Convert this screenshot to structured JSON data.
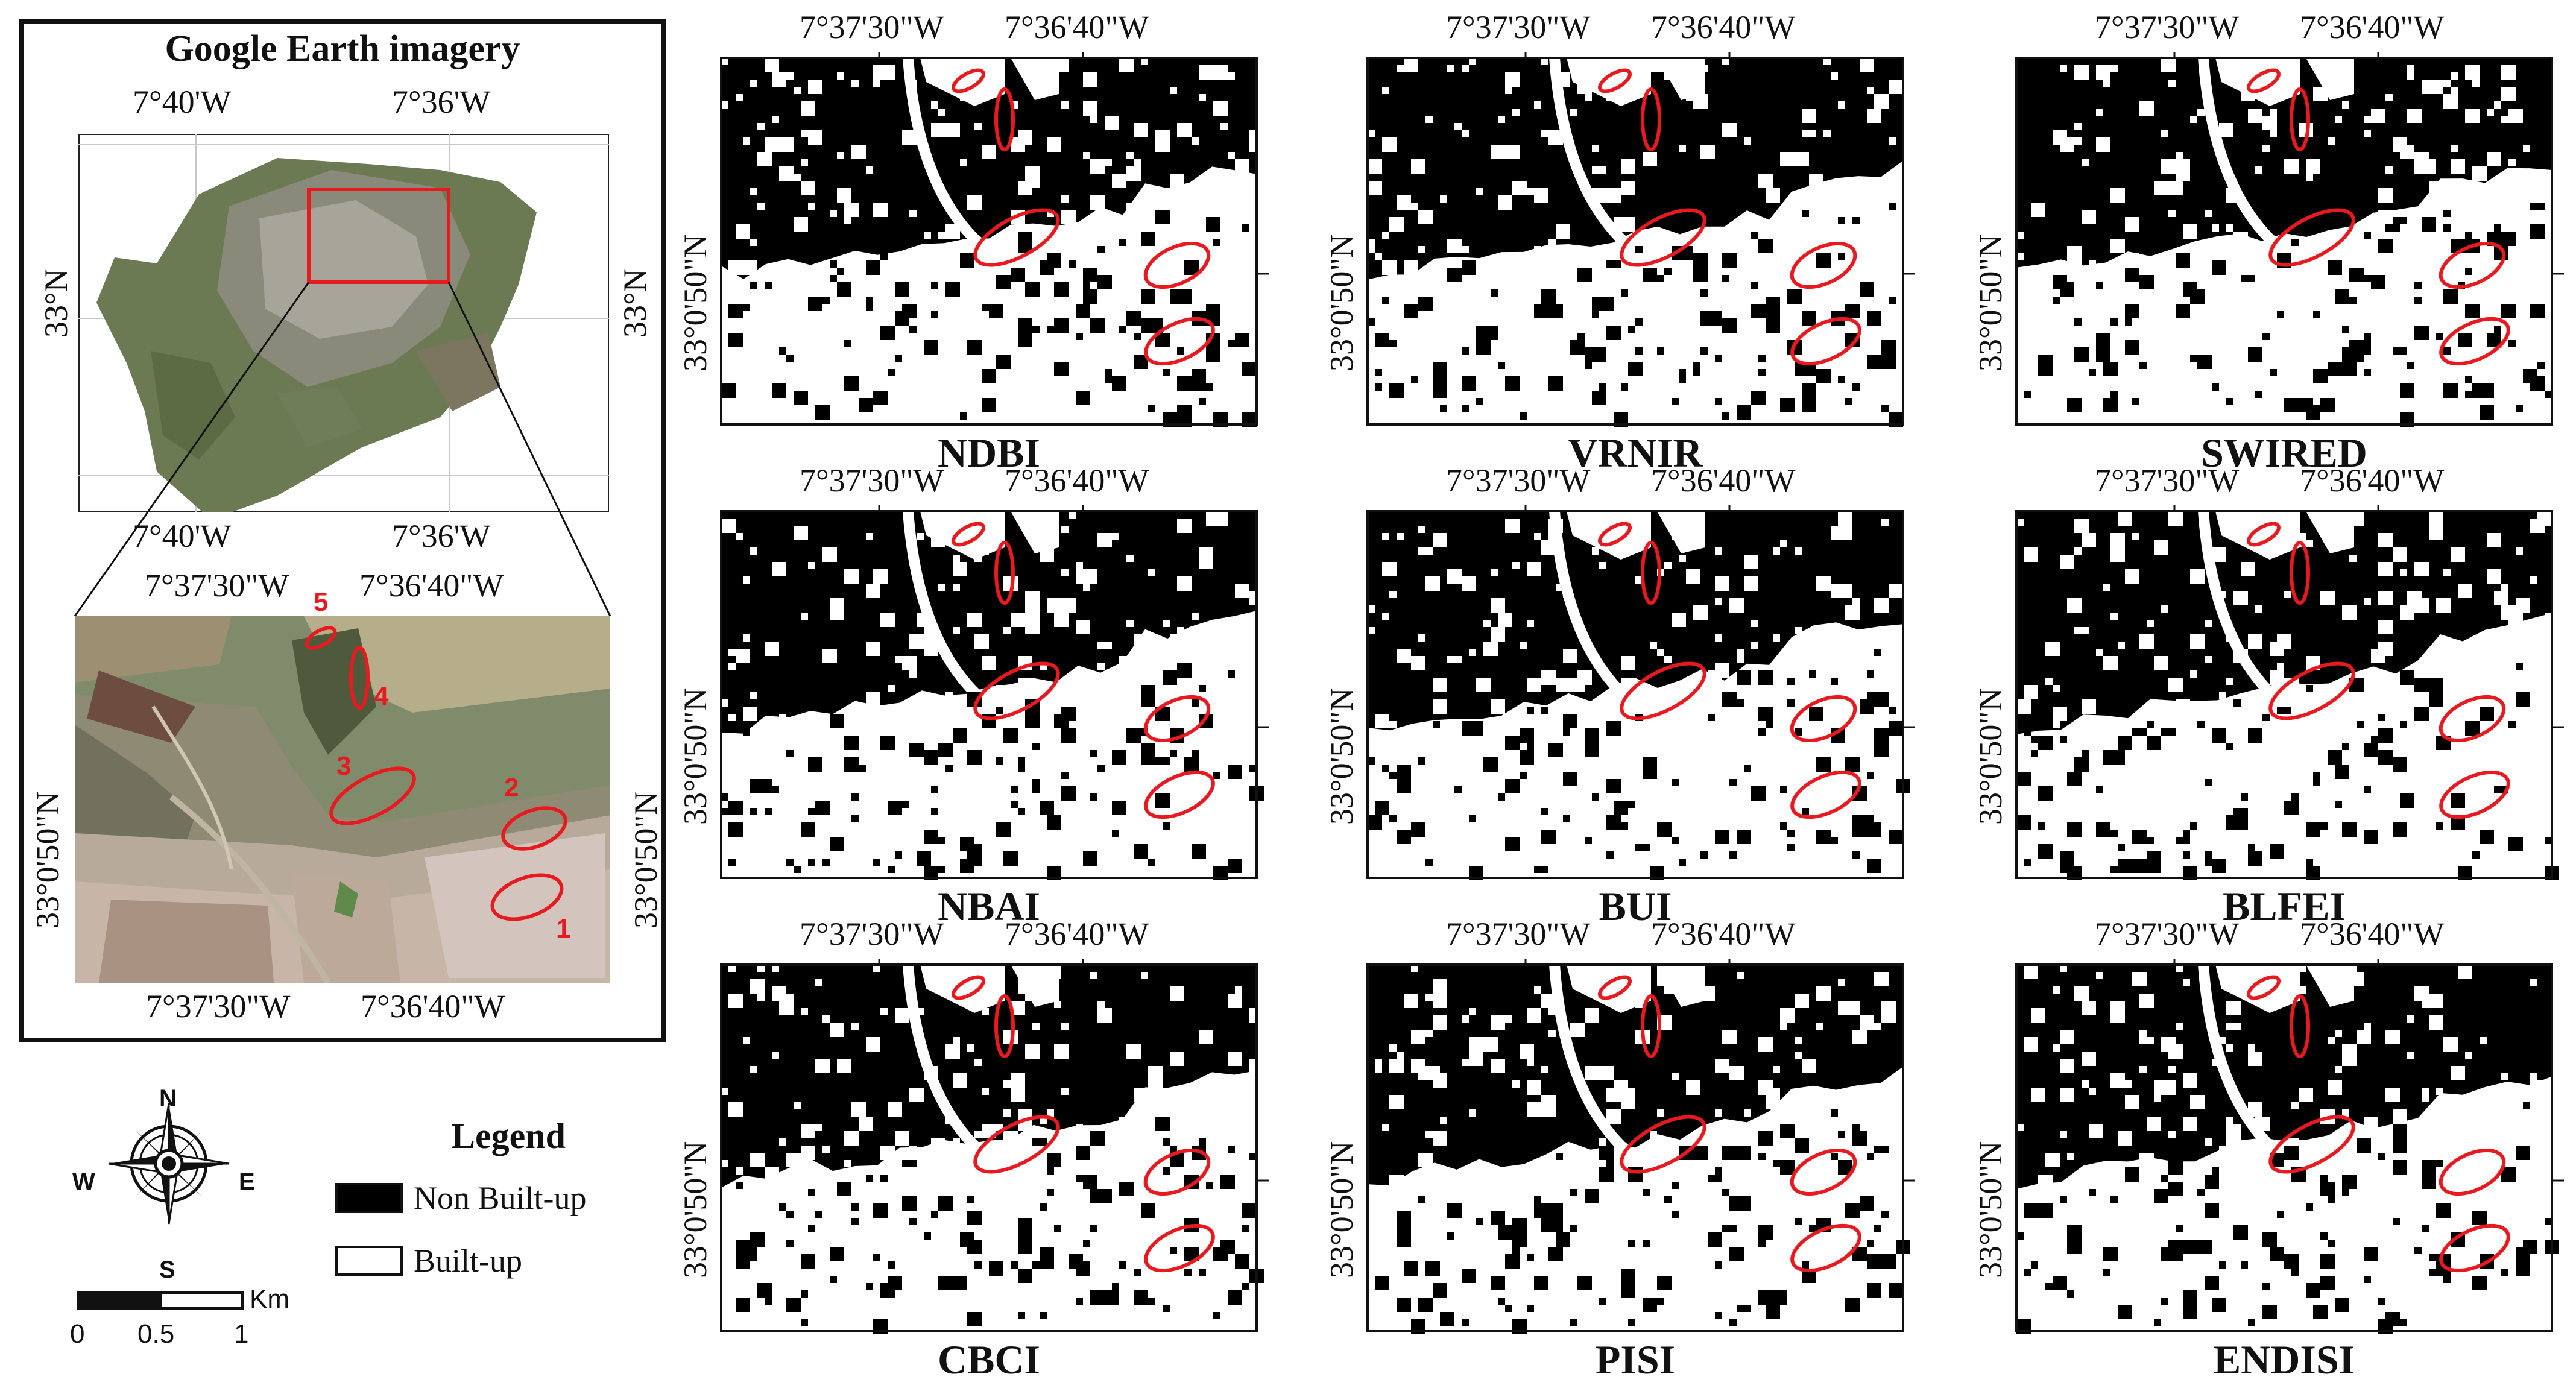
{
  "inset": {
    "title": "Google Earth imagery",
    "top_map": {
      "lon_left": "7°40'W",
      "lon_right": "7°36'W",
      "lat": "33°N"
    },
    "zoom_map": {
      "lon_left": "7°37'30\"W",
      "lon_right": "7°36'40\"W",
      "lat": "33°0'50\"N",
      "site_numbers": [
        "1",
        "2",
        "3",
        "4",
        "5"
      ]
    }
  },
  "panel_coords": {
    "lon_left": "7°37'30\"W",
    "lon_right": "7°36'40\"W",
    "lat": "33°0'50\"N"
  },
  "panels": [
    {
      "label": "NDBI"
    },
    {
      "label": "VRNIR"
    },
    {
      "label": "SWIRED"
    },
    {
      "label": "NBAI"
    },
    {
      "label": "BUI"
    },
    {
      "label": "BLFEI"
    },
    {
      "label": "CBCI"
    },
    {
      "label": "PISI"
    },
    {
      "label": "ENDISI"
    }
  ],
  "north_arrow": {
    "n": "N",
    "s": "S",
    "e": "E",
    "w": "W"
  },
  "scale_bar": {
    "unit": "Km",
    "ticks": [
      "0",
      "0.5",
      "1"
    ]
  },
  "legend": {
    "title": "Legend",
    "items": [
      {
        "label": "Non Built-up",
        "color": "#000000"
      },
      {
        "label": "Built-up",
        "color": "#ffffff"
      }
    ]
  },
  "colors": {
    "highlight": "#e8191f",
    "frame": "#111111"
  }
}
